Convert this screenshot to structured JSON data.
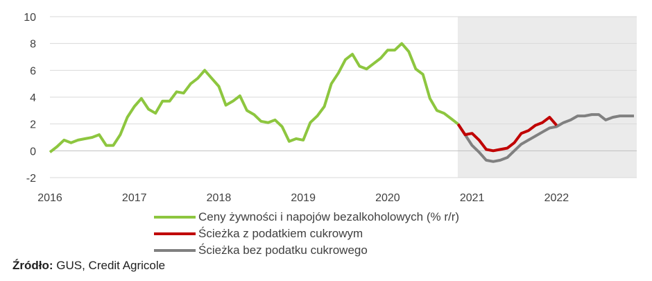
{
  "chart_data": {
    "type": "line",
    "title": "",
    "xlabel": "",
    "ylabel": "",
    "xlim": [
      2016.0,
      2022.95
    ],
    "ylim": [
      -2,
      10
    ],
    "yticks": [
      -2,
      0,
      2,
      4,
      6,
      8,
      10
    ],
    "xticks": [
      2016,
      2017,
      2018,
      2019,
      2020,
      2021,
      2022
    ],
    "xtick_labels": [
      "2016",
      "2017",
      "2018",
      "2019",
      "2020",
      "2021",
      "2022"
    ],
    "grid": "horizontal",
    "shaded_region": {
      "from": 2020.83,
      "to": 2022.95,
      "color": "#ebebeb"
    },
    "legend_position": "bottom",
    "series": [
      {
        "name": "Ceny żywności i napojów bezalkoholowych (% r/r)",
        "color": "#8dc63f",
        "x": [
          2016.0,
          2016.083,
          2016.167,
          2016.25,
          2016.333,
          2016.417,
          2016.5,
          2016.583,
          2016.667,
          2016.75,
          2016.833,
          2016.917,
          2017.0,
          2017.083,
          2017.167,
          2017.25,
          2017.333,
          2017.417,
          2017.5,
          2017.583,
          2017.667,
          2017.75,
          2017.833,
          2017.917,
          2018.0,
          2018.083,
          2018.167,
          2018.25,
          2018.333,
          2018.417,
          2018.5,
          2018.583,
          2018.667,
          2018.75,
          2018.833,
          2018.917,
          2019.0,
          2019.083,
          2019.167,
          2019.25,
          2019.333,
          2019.417,
          2019.5,
          2019.583,
          2019.667,
          2019.75,
          2019.833,
          2019.917,
          2020.0,
          2020.083,
          2020.167,
          2020.25,
          2020.333,
          2020.417,
          2020.5,
          2020.583,
          2020.667,
          2020.75,
          2020.833
        ],
        "values": [
          -0.1,
          0.3,
          0.8,
          0.6,
          0.8,
          0.9,
          1.0,
          1.2,
          0.4,
          0.4,
          1.2,
          2.5,
          3.3,
          3.9,
          3.1,
          2.8,
          3.7,
          3.7,
          4.4,
          4.3,
          5.0,
          5.4,
          6.0,
          5.4,
          4.8,
          3.4,
          3.7,
          4.1,
          3.0,
          2.7,
          2.2,
          2.1,
          2.3,
          1.8,
          0.7,
          0.9,
          0.8,
          2.1,
          2.6,
          3.3,
          5.0,
          5.8,
          6.8,
          7.2,
          6.3,
          6.1,
          6.5,
          6.9,
          7.5,
          7.5,
          8.0,
          7.4,
          6.1,
          5.7,
          3.9,
          3.0,
          2.8,
          2.4,
          2.0
        ]
      },
      {
        "name": "Ścieżka z podatkiem cukrowym",
        "color": "#c00000",
        "x": [
          2020.833,
          2020.917,
          2021.0,
          2021.083,
          2021.167,
          2021.25,
          2021.333,
          2021.417,
          2021.5,
          2021.583,
          2021.667,
          2021.75,
          2021.833,
          2021.917,
          2022.0
        ],
        "values": [
          2.0,
          1.2,
          1.3,
          0.8,
          0.1,
          0.0,
          0.1,
          0.2,
          0.6,
          1.3,
          1.5,
          1.9,
          2.1,
          2.5,
          1.9
        ]
      },
      {
        "name": "Ścieżka bez podatku cukrowego",
        "color": "#808080",
        "x": [
          2020.833,
          2020.917,
          2021.0,
          2021.083,
          2021.167,
          2021.25,
          2021.333,
          2021.417,
          2021.5,
          2021.583,
          2021.667,
          2021.75,
          2021.833,
          2021.917,
          2022.0,
          2022.083,
          2022.167,
          2022.25,
          2022.333,
          2022.417,
          2022.5,
          2022.583,
          2022.667,
          2022.75,
          2022.833,
          2022.917
        ],
        "values": [
          2.0,
          1.2,
          0.4,
          -0.1,
          -0.7,
          -0.8,
          -0.7,
          -0.5,
          0.0,
          0.5,
          0.8,
          1.1,
          1.4,
          1.7,
          1.8,
          2.1,
          2.3,
          2.6,
          2.6,
          2.7,
          2.7,
          2.3,
          2.5,
          2.6,
          2.6,
          2.6
        ]
      }
    ]
  },
  "legend": [
    {
      "label": "Ceny żywności i napojów bezalkoholowych (% r/r)",
      "color": "#8dc63f"
    },
    {
      "label": "Ścieżka z podatkiem cukrowym",
      "color": "#c00000"
    },
    {
      "label": "Ścieżka bez podatku cukrowego",
      "color": "#808080"
    }
  ],
  "source": {
    "label": "Źródło:",
    "text": " GUS, Credit Agricole"
  },
  "colors": {
    "grid": "#d9d9d9",
    "axis": "#bfbfbf",
    "shade": "#ebebeb"
  }
}
